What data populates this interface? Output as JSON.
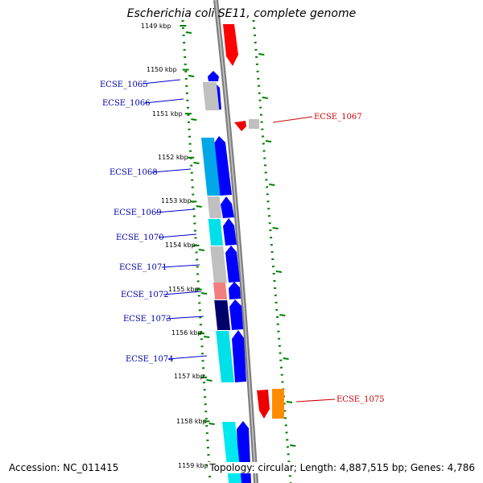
{
  "title": "Escherichia coli SE11, complete genome",
  "accession": "Accession: NC_011415",
  "topology": "Topology: circular; Length: 4,887,515 bp; Genes: 4,786",
  "colors": {
    "backbone": "#808080",
    "forward_label": "#0000aa",
    "reverse_label": "#cc0000",
    "tick": "#008000"
  },
  "kbp_labels": [
    "1149 kbp",
    "1150 kbp",
    "1151 kbp",
    "1152 kbp",
    "1153 kbp",
    "1154 kbp",
    "1155 kbp",
    "1156 kbp",
    "1157 kbp",
    "1158 kbp",
    "1159 kbp"
  ],
  "gene_labels": [
    {
      "text": "ECSE_1065",
      "strand": "forward"
    },
    {
      "text": "ECSE_1066",
      "strand": "forward"
    },
    {
      "text": "ECSE_1067",
      "strand": "reverse"
    },
    {
      "text": "ECSE_1068",
      "strand": "forward"
    },
    {
      "text": "ECSE_1069",
      "strand": "forward"
    },
    {
      "text": "ECSE_1070",
      "strand": "forward"
    },
    {
      "text": "ECSE_1071",
      "strand": "forward"
    },
    {
      "text": "ECSE_1072",
      "strand": "forward"
    },
    {
      "text": "ECSE_1073",
      "strand": "forward"
    },
    {
      "text": "ECSE_1074",
      "strand": "forward"
    },
    {
      "text": "ECSE_1075",
      "strand": "reverse"
    }
  ]
}
